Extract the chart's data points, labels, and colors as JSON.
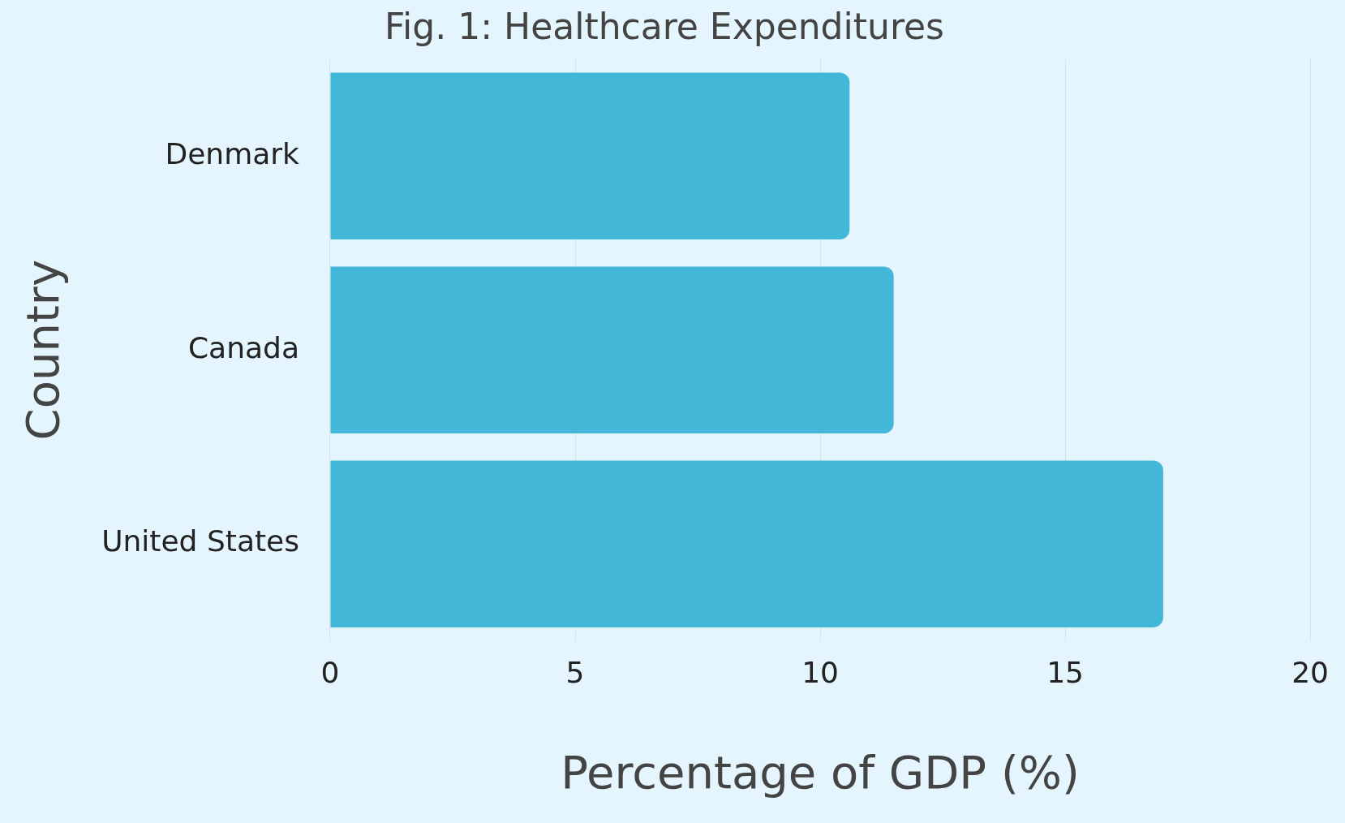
{
  "chart_data": {
    "type": "bar",
    "orientation": "horizontal",
    "title": "Fig. 1: Healthcare Expenditures",
    "xlabel": "Percentage of GDP (%)",
    "ylabel": "Country",
    "categories": [
      "Denmark",
      "Canada",
      "United States"
    ],
    "values": [
      10.6,
      11.5,
      17.0
    ],
    "color": "#42b7d7",
    "xlim": [
      0,
      20
    ],
    "xticks": [
      0,
      5,
      10,
      15,
      20
    ],
    "grid": "x"
  }
}
